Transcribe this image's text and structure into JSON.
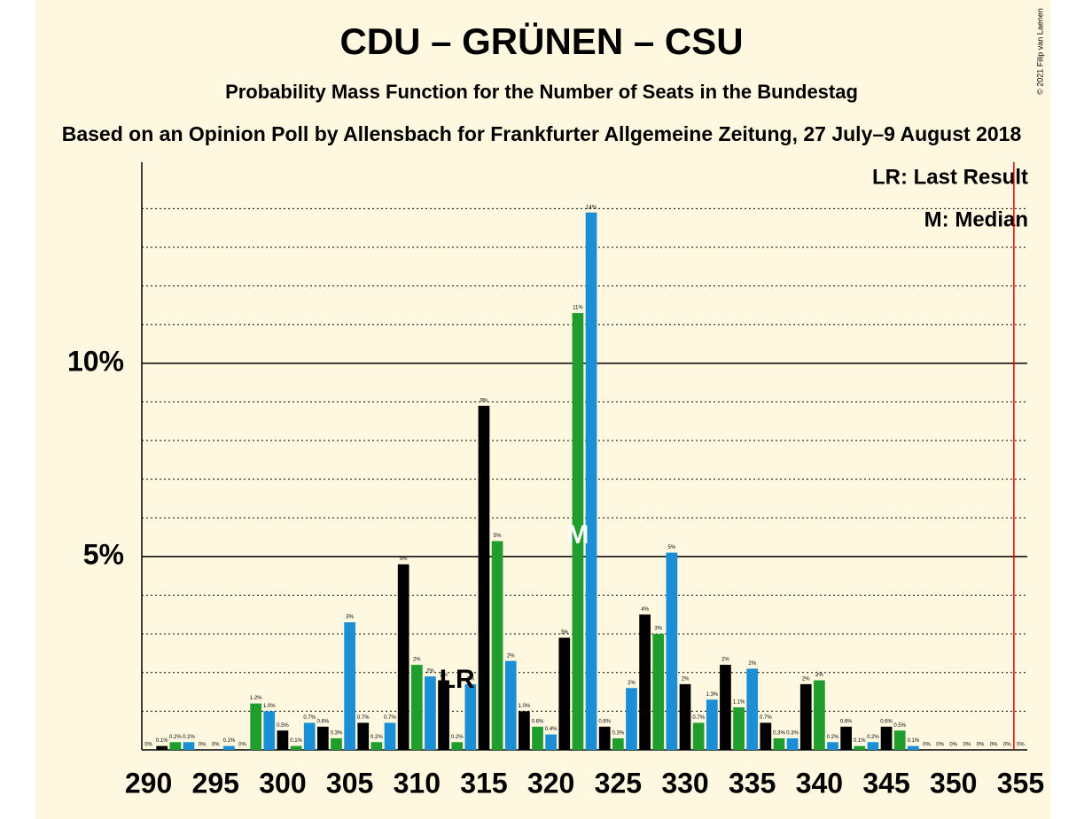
{
  "chart_data": {
    "type": "bar",
    "title": "CDU – GRÜNEN – CSU",
    "subtitle": "Probability Mass Function for the Number of Seats in the Bundestag",
    "subtitle2": "Based on an Opinion Poll by Allensbach for Frankfurter Allgemeine Zeitung, 27 July–9 August 2018",
    "copyright": "© 2021 Filip van Laenen",
    "legend": [
      "LR: Last Result",
      "M: Median"
    ],
    "x": [
      290,
      291,
      292,
      293,
      294,
      295,
      296,
      297,
      298,
      299,
      300,
      301,
      302,
      303,
      304,
      305,
      306,
      307,
      308,
      309,
      310,
      311,
      312,
      313,
      314,
      315,
      316,
      317,
      318,
      319,
      320,
      321,
      322,
      323,
      324,
      325,
      326,
      327,
      328,
      329,
      330,
      331,
      332,
      333,
      334,
      335,
      336,
      337,
      338,
      339,
      340,
      341,
      342,
      343,
      344,
      345,
      346,
      347,
      348,
      349,
      350,
      351,
      352,
      353,
      354,
      355
    ],
    "values": [
      0,
      0.1,
      0.2,
      0.2,
      0,
      0,
      0.1,
      0,
      1.2,
      1.0,
      0.5,
      0.1,
      0.7,
      0.6,
      0.3,
      3.3,
      0.7,
      0.2,
      0.7,
      4.8,
      2.2,
      1.9,
      1.8,
      0.2,
      1.7,
      8.9,
      5.4,
      2.3,
      1.0,
      0.6,
      0.4,
      2.9,
      11.3,
      13.9,
      0.6,
      0.3,
      1.6,
      3.5,
      3.0,
      5.1,
      1.7,
      0.7,
      1.3,
      2.2,
      1.1,
      2.1,
      0.7,
      0.3,
      0.3,
      1.7,
      1.8,
      0.2,
      0.6,
      0.1,
      0.2,
      0.6,
      0.5,
      0.1,
      0,
      0,
      0,
      0,
      0,
      0,
      0,
      0
    ],
    "value_labels": [
      "0%",
      "0.1%",
      "0.2%",
      "0.2%",
      "0%",
      "0%",
      "0.1%",
      "0%",
      "1.2%",
      "1.0%",
      "0.5%",
      "0.1%",
      "0.7%",
      "0.6%",
      "0.3%",
      "3%",
      "0.7%",
      "0.2%",
      "0.7%",
      "5%",
      "2%",
      "2%",
      "2%",
      "0.2%",
      "2%",
      "9%",
      "5%",
      "2%",
      "1.0%",
      "0.6%",
      "0.4%",
      "3%",
      "11%",
      "14%",
      "0.6%",
      "0.3%",
      "2%",
      "4%",
      "3%",
      "5%",
      "2%",
      "0.7%",
      "1.3%",
      "2%",
      "1.1%",
      "2%",
      "0.7%",
      "0.3%",
      "0.3%",
      "2%",
      "2%",
      "0.2%",
      "0.6%",
      "0.1%",
      "0.2%",
      "0.6%",
      "0.5%",
      "0.1%",
      "0%",
      "0%",
      "0%",
      "0%",
      "0%",
      "0%",
      "0%",
      "0%"
    ],
    "color_cycle": [
      "#1a8fd6",
      "#000000",
      "#1f9e2e"
    ],
    "xlim": [
      289.5,
      355.5
    ],
    "xticks": [
      290,
      295,
      300,
      305,
      310,
      315,
      320,
      325,
      330,
      335,
      340,
      345,
      350,
      355
    ],
    "ylim": [
      0,
      15.2
    ],
    "yticks": [
      {
        "value": 5,
        "label": "5%"
      },
      {
        "value": 10,
        "label": "10%"
      }
    ],
    "minor_yticks": [
      1,
      2,
      3,
      4,
      6,
      7,
      8,
      9,
      11,
      12,
      13,
      14
    ],
    "majority": 355,
    "majority_color": "#e00000",
    "last_result": {
      "x": 313,
      "label": "LR"
    },
    "median": {
      "x": 322,
      "label": "M"
    }
  }
}
